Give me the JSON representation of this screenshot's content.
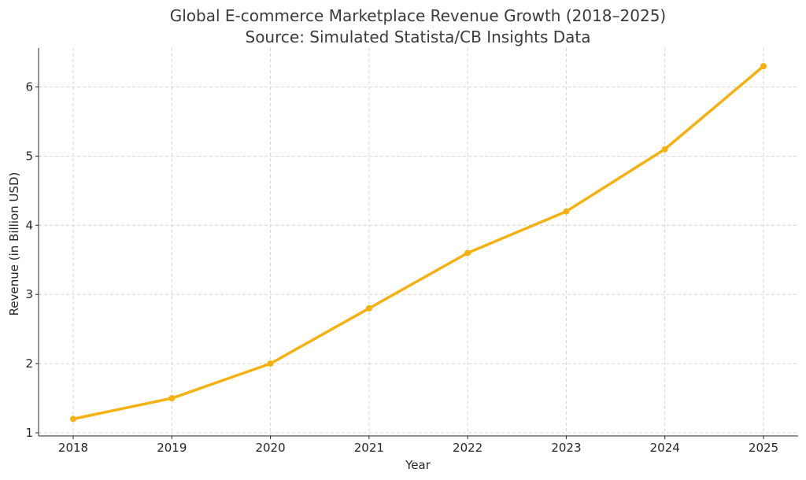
{
  "chart_data": {
    "type": "line",
    "title": "Global E-commerce Marketplace Revenue Growth (2018–2025)",
    "subtitle": "Source: Simulated Statista/CB Insights Data",
    "xlabel": "Year",
    "ylabel": "Revenue (in Billion USD)",
    "x": [
      "2018",
      "2019",
      "2020",
      "2021",
      "2022",
      "2023",
      "2024",
      "2025"
    ],
    "y_ticks": [
      "1",
      "2",
      "3",
      "4",
      "5",
      "6"
    ],
    "ylim": [
      1,
      6.6
    ],
    "grid": true,
    "series": [
      {
        "color": "#F5B10F",
        "values": [
          1.2,
          1.5,
          2.0,
          2.8,
          3.6,
          4.2,
          5.1,
          6.3
        ]
      }
    ]
  }
}
